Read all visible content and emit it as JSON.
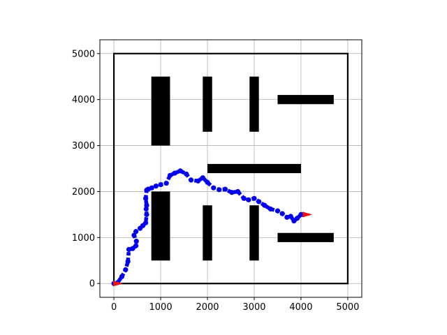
{
  "chart_data": {
    "type": "line",
    "title": "",
    "xlabel": "",
    "ylabel": "",
    "xlim": [
      -300,
      5300
    ],
    "ylim": [
      -300,
      5300
    ],
    "grid": true,
    "xticks": [
      0,
      1000,
      2000,
      3000,
      4000,
      5000
    ],
    "yticks": [
      0,
      1000,
      2000,
      3000,
      4000,
      5000
    ],
    "colors": {
      "path": "#0000ee",
      "obstacles": "#000000",
      "markers": "#ee1111",
      "grid": "#b0b0b0"
    },
    "boundary": {
      "x": [
        0,
        5000
      ],
      "y": [
        0,
        5000
      ]
    },
    "obstacles": [
      {
        "x": [
          800,
          1200
        ],
        "y": [
          3000,
          4500
        ]
      },
      {
        "x": [
          1900,
          2100
        ],
        "y": [
          3300,
          4500
        ]
      },
      {
        "x": [
          2900,
          3100
        ],
        "y": [
          3300,
          4500
        ]
      },
      {
        "x": [
          3500,
          4700
        ],
        "y": [
          3900,
          4100
        ]
      },
      {
        "x": [
          2000,
          4000
        ],
        "y": [
          2400,
          2600
        ]
      },
      {
        "x": [
          800,
          1200
        ],
        "y": [
          500,
          2000
        ]
      },
      {
        "x": [
          1900,
          2100
        ],
        "y": [
          500,
          1700
        ]
      },
      {
        "x": [
          2900,
          3100
        ],
        "y": [
          500,
          1700
        ]
      },
      {
        "x": [
          3500,
          4700
        ],
        "y": [
          900,
          1100
        ]
      }
    ],
    "path": {
      "x": [
        0,
        80,
        170,
        250,
        300,
        320,
        400,
        470,
        480,
        430,
        470,
        560,
        620,
        680,
        700,
        690,
        700,
        680,
        700,
        730,
        810,
        900,
        1000,
        1120,
        1200,
        1300,
        1420,
        1550,
        1650,
        1800,
        1900,
        2000,
        2130,
        2250,
        2380,
        2520,
        2650,
        2780,
        2880,
        3000,
        3100,
        3220,
        3350,
        3500,
        3600,
        3700,
        3780,
        3850,
        3920,
        4000,
        4050
      ],
      "y": [
        0,
        20,
        150,
        300,
        480,
        740,
        760,
        820,
        920,
        1050,
        1130,
        1200,
        1260,
        1320,
        1500,
        1620,
        1700,
        1850,
        2030,
        2050,
        2080,
        2120,
        2150,
        2180,
        2350,
        2400,
        2450,
        2380,
        2250,
        2230,
        2300,
        2200,
        2080,
        2040,
        2050,
        1980,
        2000,
        1850,
        1820,
        1850,
        1780,
        1700,
        1620,
        1580,
        1520,
        1440,
        1460,
        1360,
        1420,
        1500,
        1500
      ]
    },
    "start_marker": {
      "x": 0,
      "y": 0
    },
    "end_marker": {
      "x": 4050,
      "y": 1500
    }
  }
}
